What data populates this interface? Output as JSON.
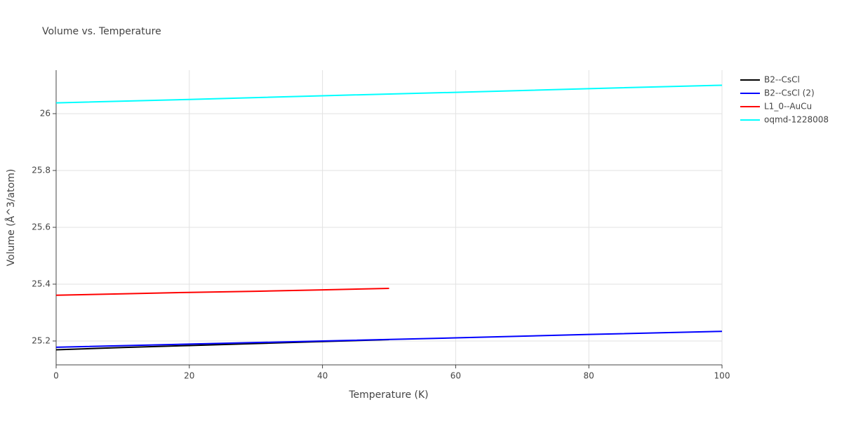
{
  "chart_data": {
    "type": "line",
    "title": "Volume vs. Temperature",
    "x_label": "Temperature (K)",
    "y_label": "Volume (Å^3/atom)",
    "xlim": [
      0,
      100
    ],
    "xticks": [
      0,
      20,
      40,
      60,
      80,
      100
    ],
    "ylim": [
      25.116,
      26.153
    ],
    "yticks": [
      25.2,
      25.4,
      25.6,
      25.8,
      26
    ],
    "grid": true,
    "legend": "right",
    "series": [
      {
        "name": "B2--CsCl",
        "color": "#000000",
        "x": [
          0,
          10,
          20,
          30,
          40,
          50
        ],
        "values": [
          25.169,
          25.177,
          25.184,
          25.191,
          25.198,
          25.205
        ]
      },
      {
        "name": "B2--CsCl (2)",
        "color": "#0000ff",
        "x": [
          0,
          20,
          40,
          60,
          80,
          100
        ],
        "values": [
          25.178,
          25.189,
          25.2,
          25.211,
          25.223,
          25.234
        ]
      },
      {
        "name": "L1_0--AuCu",
        "color": "#ff0000",
        "x": [
          0,
          10,
          20,
          30,
          40,
          50
        ],
        "values": [
          25.361,
          25.366,
          25.371,
          25.375,
          25.38,
          25.385
        ]
      },
      {
        "name": "oqmd-1228008",
        "color": "#00ffff",
        "x": [
          0,
          20,
          40,
          60,
          80,
          100
        ],
        "values": [
          26.038,
          26.05,
          26.063,
          26.075,
          26.088,
          26.1
        ]
      }
    ]
  }
}
